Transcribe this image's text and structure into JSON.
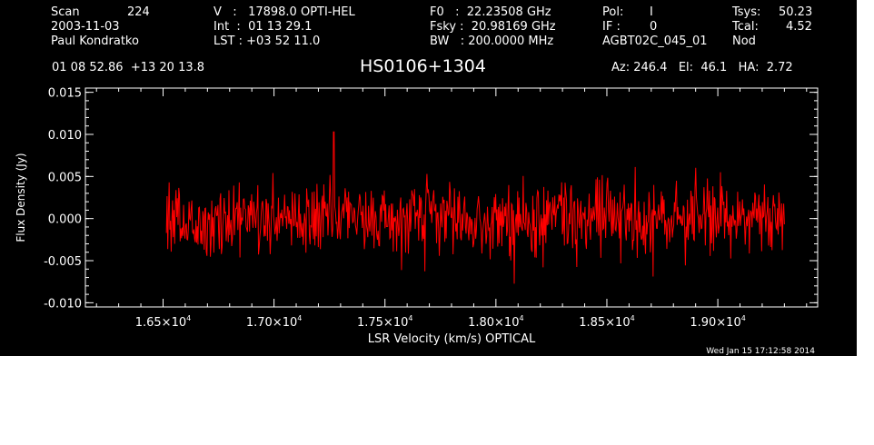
{
  "header": {
    "scan_label": "Scan",
    "scan_value": "224",
    "date": "2003-11-03",
    "observer": "Paul Kondratko",
    "v_line": "V   :   17898.0 OPTI-HEL",
    "int_line": "Int  :  01 13 29.1",
    "lst_line": "LST : +03 52 11.0",
    "f0_line": "F0   :  22.23508 GHz",
    "fsky_line": "Fsky :  20.98169 GHz",
    "bw_line": "BW   : 200.0000 MHz",
    "pol_label": "Pol:",
    "pol_value": "I",
    "if_label": "IF :",
    "if_value": "0",
    "project": "AGBT02C_045_01",
    "tsys_label": "Tsys:",
    "tsys_value": "50.23",
    "tcal_label": "Tcal:",
    "tcal_value": "4.52",
    "nod": "Nod",
    "coords": "01 08 52.86  +13 20 13.8",
    "source": "HS0106+1304",
    "az_el_ha": "Az: 246.4   El:  46.1   HA:  2.72",
    "timestamp": "Wed Jan 15 17:12:58 2014"
  },
  "chart_data": {
    "type": "line",
    "xlabel": "LSR Velocity (km/s) OPTICAL",
    "ylabel": "Flux Density (Jy)",
    "xlim": [
      16150,
      19450
    ],
    "ylim": [
      -0.0105,
      0.0155
    ],
    "xticks": [
      {
        "value": 16500,
        "mantissa": "1.65",
        "exp": "4"
      },
      {
        "value": 17000,
        "mantissa": "1.70",
        "exp": "4"
      },
      {
        "value": 17500,
        "mantissa": "1.75",
        "exp": "4"
      },
      {
        "value": 18000,
        "mantissa": "1.80",
        "exp": "4"
      },
      {
        "value": 18500,
        "mantissa": "1.85",
        "exp": "4"
      },
      {
        "value": 19000,
        "mantissa": "1.90",
        "exp": "4"
      }
    ],
    "yticks": [
      {
        "value": -0.01,
        "label": "-0.010"
      },
      {
        "value": -0.005,
        "label": "-0.005"
      },
      {
        "value": 0.0,
        "label": "0.000"
      },
      {
        "value": 0.005,
        "label": "0.005"
      },
      {
        "value": 0.01,
        "label": "0.010"
      },
      {
        "value": 0.015,
        "label": "0.015"
      }
    ],
    "series": [
      {
        "color": "#ff0000",
        "x_range": [
          16515,
          19300
        ],
        "n_channels": 900,
        "rms": 0.0022,
        "y_min": -0.008,
        "y_max": 0.0103,
        "spike": {
          "x": 17270,
          "y": 0.0103
        },
        "envelope": [
          [
            16515,
            0.0
          ],
          [
            16700,
            -0.0003
          ],
          [
            16900,
            0.0
          ],
          [
            17100,
            -0.0002
          ],
          [
            17300,
            0.0003
          ],
          [
            17500,
            0.0001
          ],
          [
            17600,
            0.0005
          ],
          [
            17700,
            0.001
          ],
          [
            17800,
            0.0
          ],
          [
            18000,
            -0.0005
          ],
          [
            18100,
            -0.0008
          ],
          [
            18300,
            0.0005
          ],
          [
            18500,
            0.0
          ],
          [
            18700,
            -0.0005
          ],
          [
            18900,
            0.0
          ],
          [
            19100,
            0.0003
          ],
          [
            19300,
            0.0
          ]
        ]
      }
    ],
    "colors": {
      "background": "#000000",
      "axes": "#ffffff",
      "trace": "#ff0000"
    }
  }
}
